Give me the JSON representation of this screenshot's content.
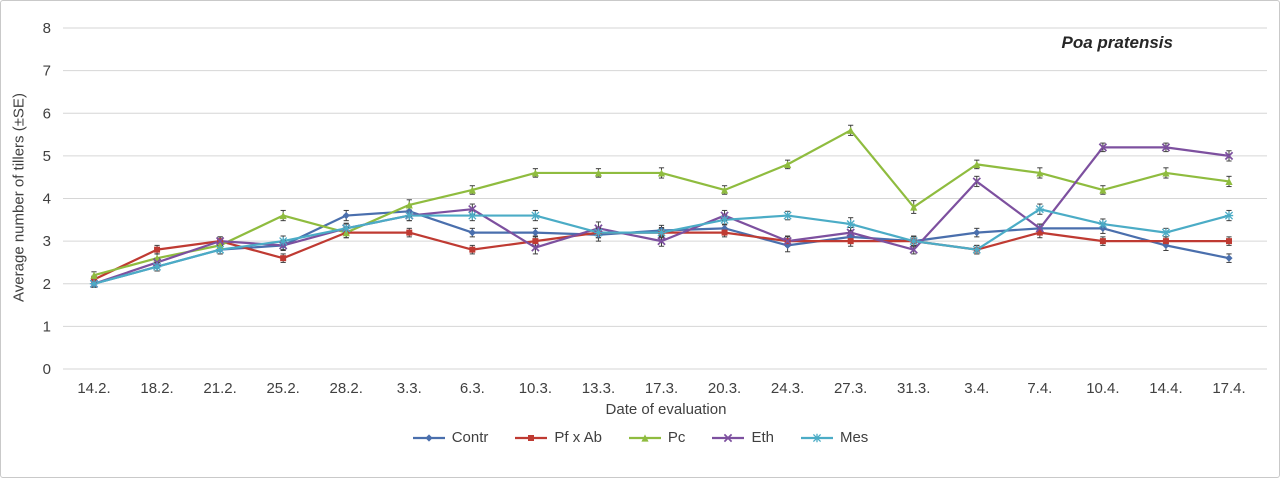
{
  "chart_data": {
    "type": "line",
    "title": "Poa pratensis",
    "xlabel": "Date of evaluation",
    "ylabel": "Average number of tillers (±SE)",
    "ylim": [
      0,
      8
    ],
    "yticks": [
      0,
      1,
      2,
      3,
      4,
      5,
      6,
      7,
      8
    ],
    "grid": "horizontal",
    "legend_position": "bottom",
    "error_bar_color": "#404040",
    "categories": [
      "14.2.",
      "18.2.",
      "21.2.",
      "25.2.",
      "28.2.",
      "3.3.",
      "6.3.",
      "10.3.",
      "13.3.",
      "17.3.",
      "20.3.",
      "24.3.",
      "27.3.",
      "31.3.",
      "3.4.",
      "7.4.",
      "10.4.",
      "14.4.",
      "17.4."
    ],
    "series": [
      {
        "name": "Contr",
        "color": "#4a6fad",
        "marker": "diamond",
        "values": [
          2.0,
          2.4,
          2.8,
          2.9,
          3.6,
          3.7,
          3.2,
          3.2,
          3.15,
          3.25,
          3.3,
          2.9,
          3.1,
          3.0,
          3.2,
          3.3,
          3.3,
          2.9,
          2.6
        ],
        "se": [
          0.08,
          0.1,
          0.1,
          0.12,
          0.12,
          0.12,
          0.1,
          0.1,
          0.15,
          0.12,
          0.1,
          0.15,
          0.12,
          0.1,
          0.1,
          0.1,
          0.12,
          0.12,
          0.1
        ]
      },
      {
        "name": "Pf x Ab",
        "color": "#bf3a32",
        "marker": "square",
        "values": [
          2.1,
          2.8,
          3.0,
          2.6,
          3.2,
          3.2,
          2.8,
          3.0,
          3.2,
          3.2,
          3.2,
          3.0,
          3.0,
          3.0,
          2.8,
          3.2,
          3.0,
          3.0,
          3.0
        ],
        "se": [
          0.08,
          0.1,
          0.1,
          0.1,
          0.12,
          0.1,
          0.1,
          0.12,
          0.12,
          0.1,
          0.1,
          0.1,
          0.12,
          0.1,
          0.1,
          0.12,
          0.1,
          0.1,
          0.1
        ]
      },
      {
        "name": "Pc",
        "color": "#8fbc3f",
        "marker": "triangle",
        "values": [
          2.2,
          2.6,
          2.9,
          3.6,
          3.2,
          3.85,
          4.2,
          4.6,
          4.6,
          4.6,
          4.2,
          4.8,
          5.6,
          3.8,
          4.8,
          4.6,
          4.2,
          4.6,
          4.4
        ],
        "se": [
          0.08,
          0.1,
          0.1,
          0.12,
          0.12,
          0.12,
          0.1,
          0.1,
          0.1,
          0.12,
          0.1,
          0.1,
          0.12,
          0.15,
          0.1,
          0.12,
          0.1,
          0.12,
          0.12
        ]
      },
      {
        "name": "Eth",
        "color": "#7d509f",
        "marker": "x",
        "values": [
          2.0,
          2.5,
          3.0,
          2.9,
          3.3,
          3.6,
          3.75,
          2.85,
          3.3,
          3.0,
          3.6,
          3.0,
          3.2,
          2.8,
          4.4,
          3.3,
          5.2,
          5.2,
          5.0
        ],
        "se": [
          0.08,
          0.1,
          0.1,
          0.1,
          0.12,
          0.12,
          0.12,
          0.15,
          0.15,
          0.12,
          0.12,
          0.12,
          0.12,
          0.1,
          0.12,
          0.1,
          0.1,
          0.1,
          0.12
        ]
      },
      {
        "name": "Mes",
        "color": "#4bacc6",
        "marker": "asterisk",
        "values": [
          2.0,
          2.4,
          2.8,
          3.0,
          3.3,
          3.6,
          3.6,
          3.6,
          3.2,
          3.2,
          3.5,
          3.6,
          3.4,
          3.0,
          2.8,
          3.75,
          3.4,
          3.2,
          3.6
        ],
        "se": [
          0.08,
          0.1,
          0.1,
          0.12,
          0.1,
          0.12,
          0.12,
          0.12,
          0.12,
          0.12,
          0.12,
          0.1,
          0.15,
          0.12,
          0.1,
          0.12,
          0.12,
          0.1,
          0.12
        ]
      }
    ]
  }
}
